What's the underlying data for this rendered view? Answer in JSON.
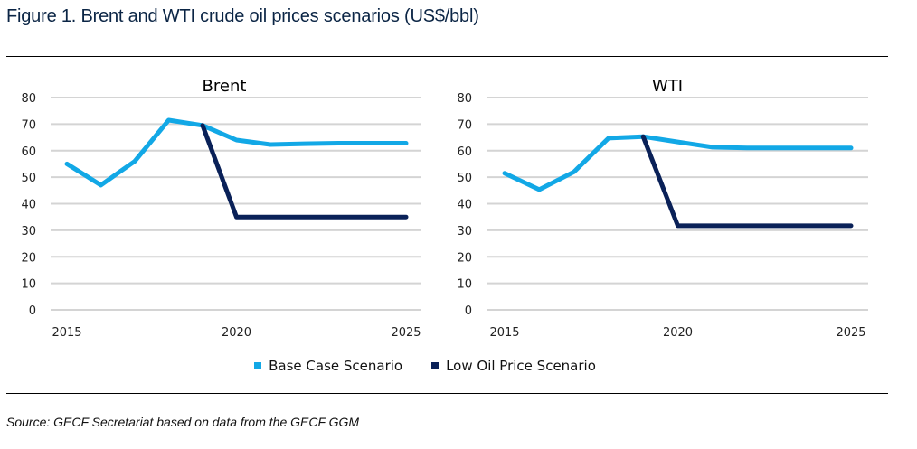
{
  "figure": {
    "title": "Figure 1. Brent and WTI crude oil prices scenarios (US$/bbl)",
    "source": "Source: GECF Secretariat based on data from the GECF GGM"
  },
  "legend": [
    {
      "label": "Base Case Scenario",
      "color": "#12a8e6"
    },
    {
      "label": "Low Oil Price Scenario",
      "color": "#0a2158"
    }
  ],
  "chart_data": [
    {
      "type": "line",
      "title": "Brent",
      "xlabel": "",
      "ylabel": "",
      "x": [
        2015,
        2016,
        2017,
        2018,
        2019,
        2020,
        2021,
        2022,
        2023,
        2024,
        2025
      ],
      "xticks": [
        "2015",
        "2020",
        "2025"
      ],
      "yticks": [
        "0",
        "10",
        "20",
        "30",
        "40",
        "50",
        "60",
        "70",
        "80"
      ],
      "ylim": [
        0,
        80
      ],
      "xlim": [
        2015,
        2025
      ],
      "grid": true,
      "series": [
        {
          "name": "Base Case Scenario",
          "color": "#12a8e6",
          "values": [
            55,
            47,
            56,
            71.5,
            69.5,
            64,
            62.3,
            62.6,
            62.8,
            62.8,
            62.8
          ]
        },
        {
          "name": "Low Oil Price Scenario",
          "color": "#0a2158",
          "values": [
            null,
            null,
            null,
            null,
            69.5,
            35,
            35,
            35,
            35,
            35,
            35
          ]
        }
      ]
    },
    {
      "type": "line",
      "title": "WTI",
      "xlabel": "",
      "ylabel": "",
      "x": [
        2015,
        2016,
        2017,
        2018,
        2019,
        2020,
        2021,
        2022,
        2023,
        2024,
        2025
      ],
      "xticks": [
        "2015",
        "2020",
        "2025"
      ],
      "yticks": [
        "0",
        "10",
        "20",
        "30",
        "40",
        "50",
        "60",
        "70",
        "80"
      ],
      "ylim": [
        0,
        80
      ],
      "xlim": [
        2015,
        2025
      ],
      "grid": true,
      "series": [
        {
          "name": "Base Case Scenario",
          "color": "#12a8e6",
          "values": [
            51.5,
            45.3,
            52,
            64.7,
            65.3,
            63.3,
            61.3,
            61,
            61,
            61,
            61
          ]
        },
        {
          "name": "Low Oil Price Scenario",
          "color": "#0a2158",
          "values": [
            null,
            null,
            null,
            null,
            65.3,
            31.7,
            31.7,
            31.7,
            31.7,
            31.7,
            31.7
          ]
        }
      ]
    }
  ]
}
